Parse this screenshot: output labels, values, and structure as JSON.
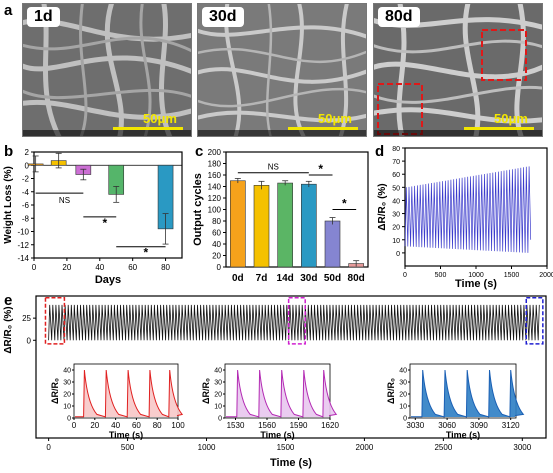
{
  "panel_a": {
    "letter": "a",
    "images": [
      {
        "label": "1d",
        "scale": "50μm"
      },
      {
        "label": "30d",
        "scale": "50μm"
      },
      {
        "label": "80d",
        "scale": "50μm"
      }
    ]
  },
  "panel_letters": {
    "b": "b",
    "c": "c",
    "d": "d",
    "e": "e"
  },
  "chart_data": [
    {
      "id": "b",
      "type": "bar",
      "xlabel": "Days",
      "ylabel": "Weight Loss (%)",
      "x": [
        1,
        15,
        30,
        50,
        80
      ],
      "values": [
        0.2,
        0.7,
        -1.4,
        -4.4,
        -9.6
      ],
      "errors": [
        1.2,
        1.1,
        0.8,
        1.2,
        2.3
      ],
      "colors": [
        "#f5a21b",
        "#f5c100",
        "#cc6fd4",
        "#55b56a",
        "#2a99c3"
      ],
      "xlim": [
        0,
        90
      ],
      "xticks": [
        "0",
        "20",
        "40",
        "60",
        "80"
      ],
      "ylim": [
        -14,
        2
      ],
      "yticks": [
        "2",
        "0",
        "-2",
        "-4",
        "-6",
        "-8",
        "-10",
        "-12",
        "-14"
      ],
      "annotations": [
        "NS",
        "*",
        "*"
      ]
    },
    {
      "id": "c",
      "type": "bar",
      "xlabel": "",
      "ylabel": "Output cycles",
      "categories": [
        "0d",
        "7d",
        "14d",
        "30d",
        "50d",
        "80d"
      ],
      "values": [
        150,
        142,
        146,
        144,
        80,
        6
      ],
      "errors": [
        4,
        7,
        4,
        5,
        6,
        5
      ],
      "colors": [
        "#f5a21b",
        "#f5c100",
        "#5bb565",
        "#2a99c3",
        "#8585d1",
        "#e79b9b"
      ],
      "ylim": [
        0,
        200
      ],
      "yticks": [
        "0",
        "20",
        "40",
        "60",
        "80",
        "100",
        "120",
        "140",
        "160",
        "180",
        "200"
      ],
      "annotations": [
        "NS",
        "*",
        "*"
      ]
    },
    {
      "id": "d",
      "type": "line",
      "xlabel": "Time (s)",
      "ylabel": "ΔR/R₀ (%)",
      "xlim": [
        0,
        2000
      ],
      "xticks": [
        "0",
        "500",
        "1000",
        "1500",
        "2000"
      ],
      "ylim": [
        -10,
        80
      ],
      "yticks": [
        "0",
        "10",
        "20",
        "30",
        "40",
        "50",
        "60",
        "70",
        "80"
      ],
      "color": "#3b3bcc",
      "series": [
        {
          "x_start": 0,
          "x_end": 1770,
          "cycles": 45,
          "min_start": 5,
          "min_end": 0,
          "max_start": 50,
          "max_end": 66
        }
      ]
    },
    {
      "id": "e",
      "type": "line",
      "xlabel": "Time (s)",
      "ylabel": "ΔR/R₀ (%)",
      "xlim": [
        -80,
        3150
      ],
      "xticks": [
        "0",
        "500",
        "1000",
        "1500",
        "2000",
        "2500",
        "3000"
      ],
      "ylim": [
        -20,
        50
      ],
      "yticks": [
        "0",
        "25"
      ],
      "color": "#111111",
      "series": [
        {
          "x_start": 0,
          "x_end": 3120,
          "cycles": 160,
          "min": 0,
          "max": 40
        }
      ],
      "insets": [
        {
          "color": "#e02020",
          "fill": "#f7c8c8",
          "xlim": [
            0,
            100
          ],
          "xticks": [
            "0",
            "20",
            "40",
            "60",
            "80",
            "100"
          ],
          "ylim": [
            0,
            45
          ],
          "yticks": [
            "0",
            "10",
            "20",
            "30",
            "40"
          ],
          "peaks": [
            10,
            31,
            52,
            73,
            92
          ],
          "xlabel": "Time (s)",
          "ylabel": "ΔR/R₀"
        },
        {
          "color": "#b32ab3",
          "fill": "#e8c6ee",
          "xlim": [
            1520,
            1620
          ],
          "xticks": [
            "1530",
            "1560",
            "1590",
            "1620"
          ],
          "ylim": [
            0,
            45
          ],
          "yticks": [
            "0",
            "10",
            "20",
            "30",
            "40"
          ],
          "peaks": [
            1532,
            1553,
            1574,
            1595,
            1614
          ],
          "xlabel": "Time (s)",
          "ylabel": "ΔR/R₀"
        },
        {
          "color": "#1a5fb4",
          "fill": "#2d7ec4",
          "xlim": [
            3025,
            3125
          ],
          "xticks": [
            "3030",
            "3060",
            "3090",
            "3120"
          ],
          "ylim": [
            0,
            45
          ],
          "yticks": [
            "0",
            "10",
            "20",
            "30",
            "40"
          ],
          "peaks": [
            3037,
            3058,
            3079,
            3100,
            3120
          ],
          "xlabel": "Time (s)",
          "ylabel": "ΔR/R₀"
        }
      ]
    }
  ]
}
